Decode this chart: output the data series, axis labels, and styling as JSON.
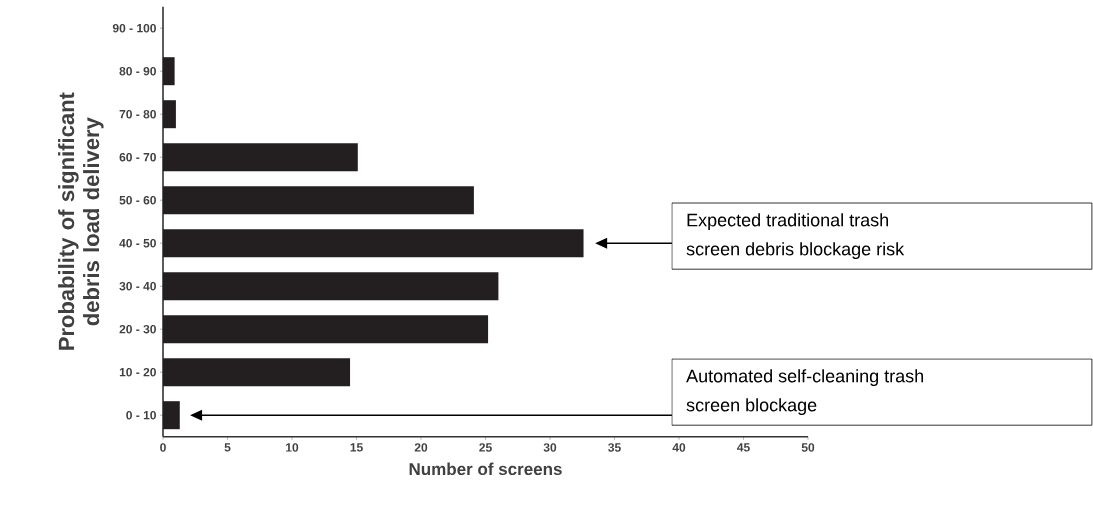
{
  "chart_data": {
    "type": "bar",
    "orientation": "horizontal",
    "categories": [
      "90 - 100",
      "80 - 90",
      "70 - 80",
      "60 - 70",
      "50 - 60",
      "40 - 50",
      "30 - 40",
      "20 - 30",
      "10 - 20",
      "0 - 10"
    ],
    "values": [
      0,
      0.9,
      1.0,
      15.1,
      24.1,
      32.6,
      26.0,
      25.2,
      14.5,
      1.3
    ],
    "color": "#231f20",
    "xlabel": "Number of screens",
    "ylabel": "Probability of significant debris load delivery",
    "xlim": [
      0,
      50
    ],
    "xticks": [
      0,
      5,
      10,
      15,
      20,
      25,
      30,
      35,
      40,
      45,
      50
    ],
    "grid": false,
    "annotations": [
      "Expected traditional trash screen debris blockage risk",
      "Automated self-cleaning trash screen blockage"
    ]
  }
}
